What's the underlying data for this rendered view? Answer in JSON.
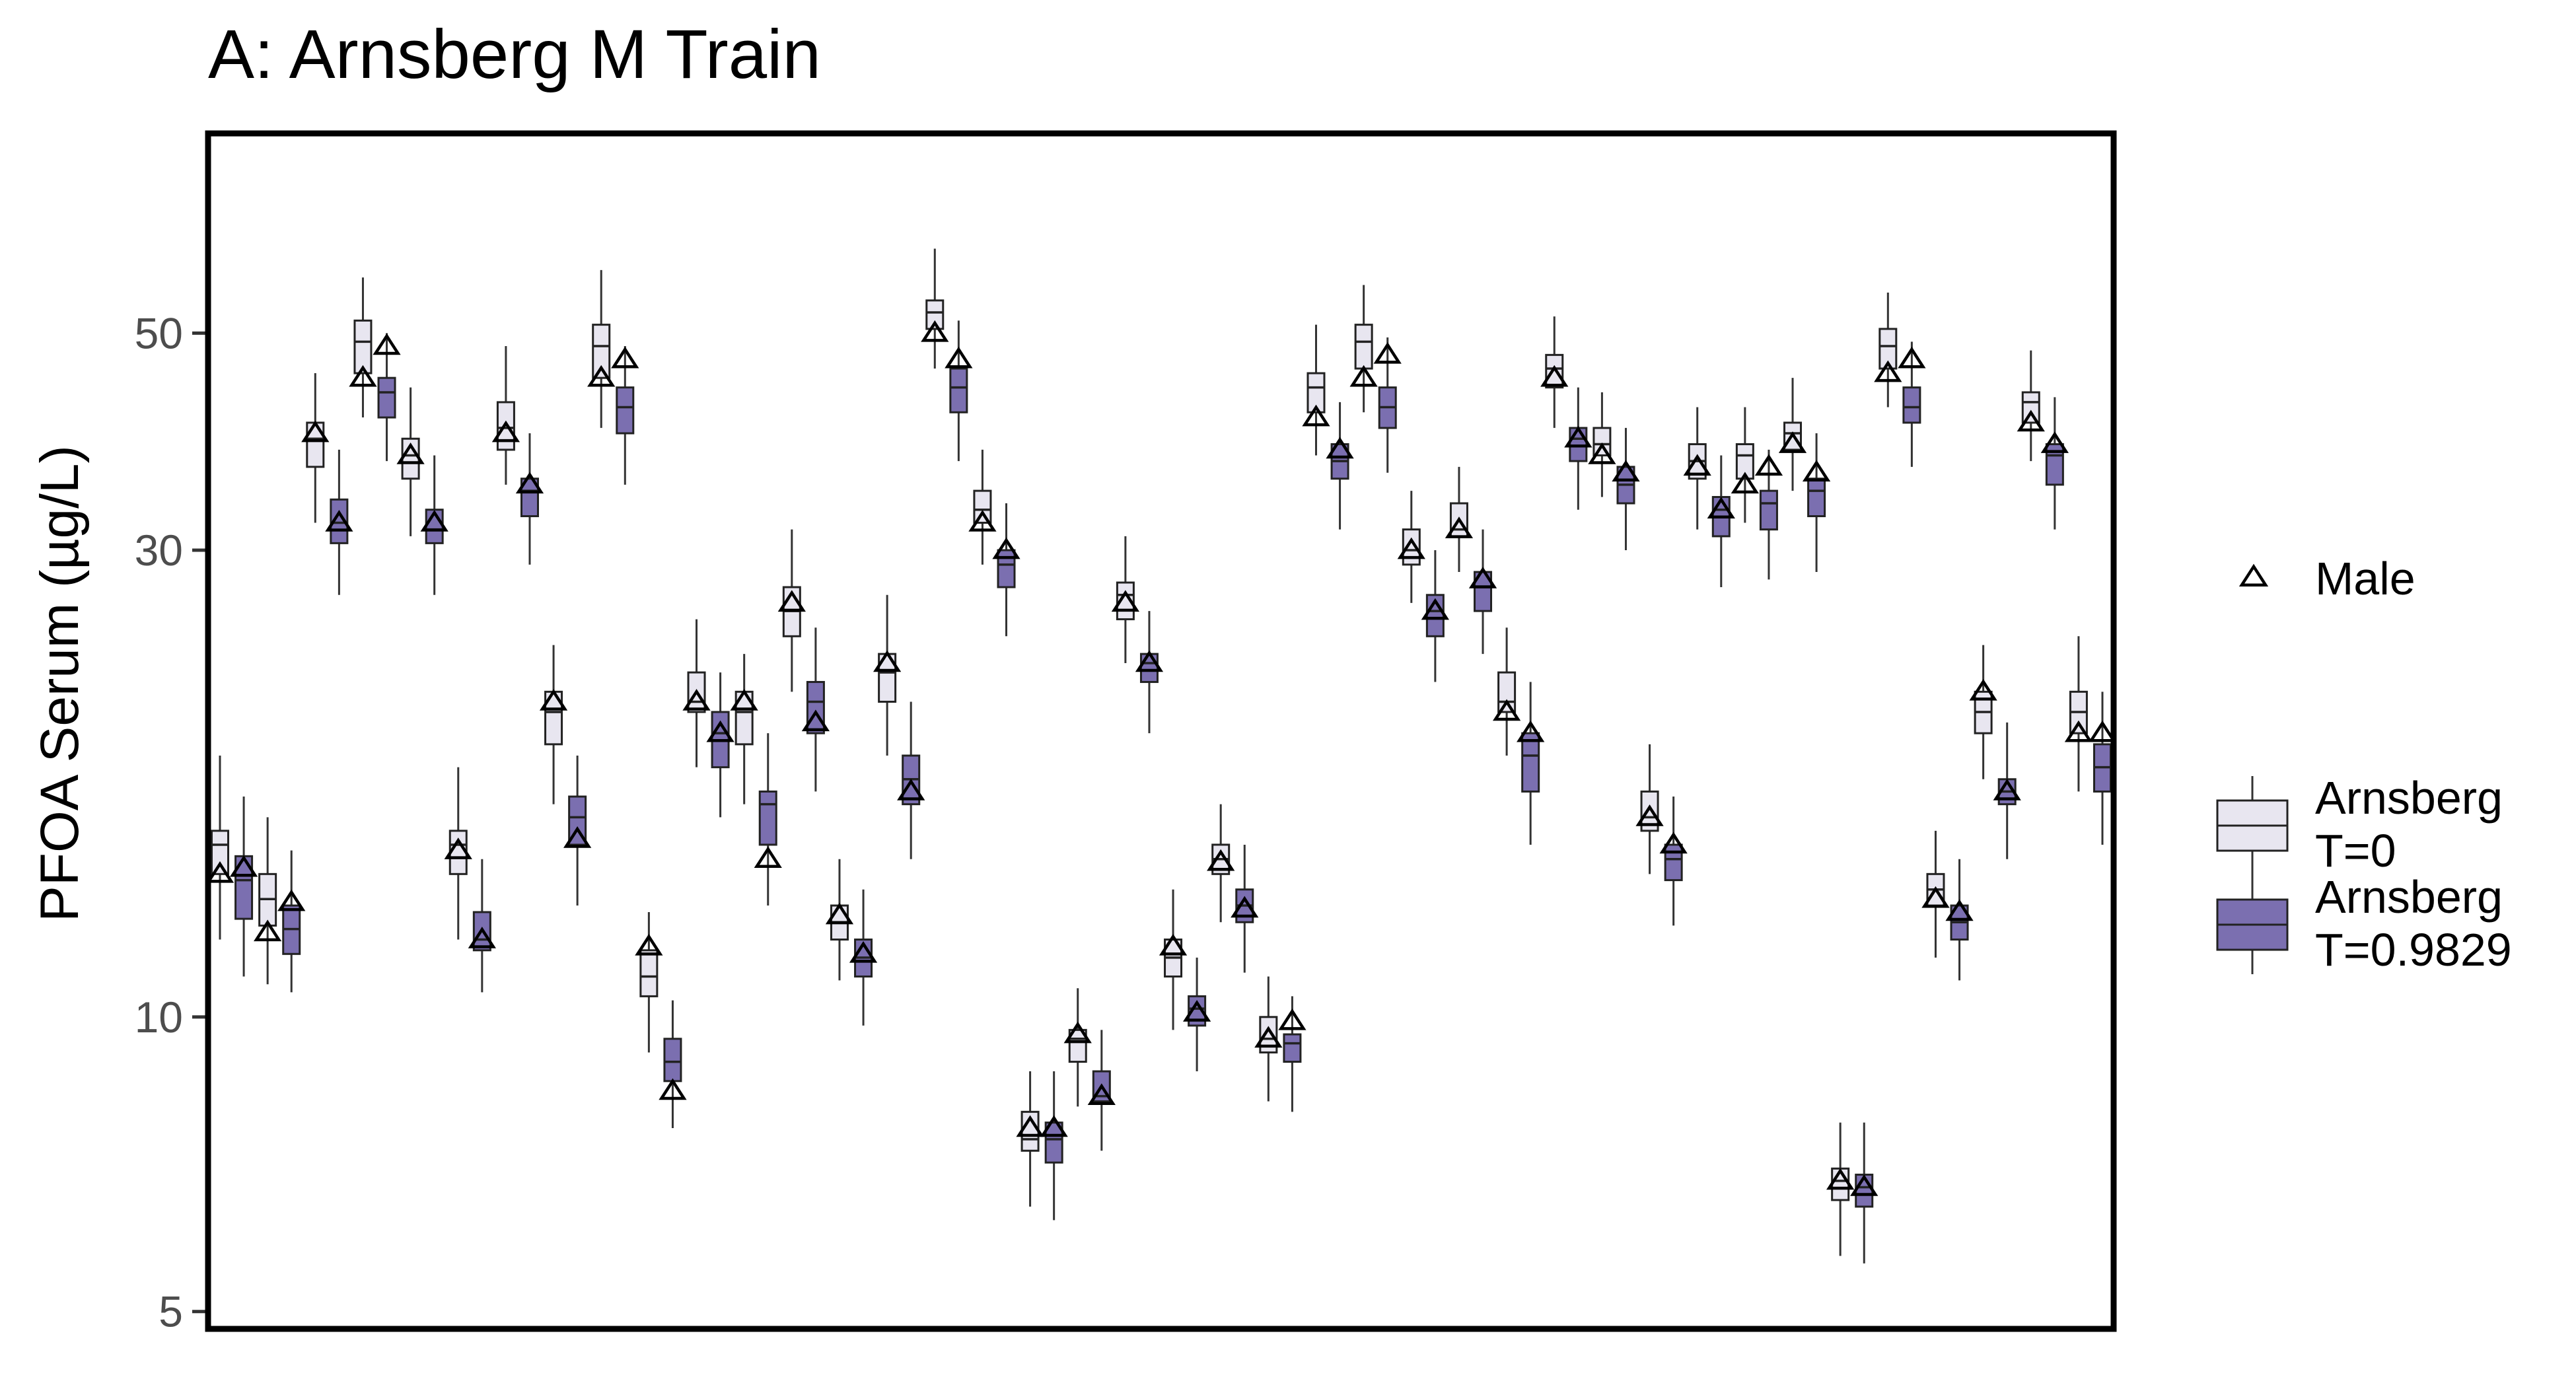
{
  "chart_data": {
    "type": "box",
    "title": "A: Arnsberg M Train",
    "xlabel": "",
    "ylabel": "PFOA Serum (µg/L)",
    "y_scale": "log",
    "ylim": [
      4.8,
      80
    ],
    "yticks": [
      5,
      10,
      30,
      50
    ],
    "ytick_labels": [
      "5",
      "10",
      "30",
      "50"
    ],
    "grid": false,
    "legend_position": "right",
    "legend": {
      "shape_entries": [
        {
          "label": "Male",
          "marker": "triangle-open"
        }
      ],
      "fill_entries": [
        {
          "label": "Arnsberg\nT=0",
          "line1": "Arnsberg",
          "line2": "T=0",
          "color": "#e8e6f0"
        },
        {
          "label": "Arnsberg\nT=0.9829",
          "line1": "Arnsberg",
          "line2": "T=0.9829",
          "color": "#7b6fb0"
        }
      ]
    },
    "colors": {
      "t0_fill": "#e8e6f0",
      "t1_fill": "#7b6fb0",
      "outline": "#222222",
      "whisker": "#333333"
    },
    "series_names": [
      "Arnsberg T=0",
      "Arnsberg T=0.9829"
    ],
    "subjects": [
      {
        "t0": {
          "med": 15.0,
          "q1": 14.0,
          "q3": 15.5,
          "lo": 12.0,
          "hi": 18.5,
          "obs": 14.0
        },
        "t1": {
          "med": 13.8,
          "q1": 12.6,
          "q3": 14.6,
          "lo": 11.0,
          "hi": 16.8,
          "obs": 14.2
        }
      },
      {
        "t0": {
          "med": 13.2,
          "q1": 12.4,
          "q3": 14.0,
          "lo": 10.8,
          "hi": 16.0,
          "obs": 12.2
        },
        "t1": {
          "med": 12.3,
          "q1": 11.6,
          "q3": 13.0,
          "lo": 10.6,
          "hi": 14.8,
          "obs": 13.1
        }
      },
      {
        "t0": {
          "med": 39.0,
          "q1": 36.5,
          "q3": 40.5,
          "lo": 32.0,
          "hi": 45.5,
          "obs": 39.5
        },
        "t1": {
          "med": 32.0,
          "q1": 30.5,
          "q3": 33.8,
          "lo": 27.0,
          "hi": 38.0,
          "obs": 32.0
        }
      },
      {
        "t0": {
          "med": 49.0,
          "q1": 45.5,
          "q3": 51.5,
          "lo": 41.0,
          "hi": 57.0,
          "obs": 45.0
        },
        "t1": {
          "med": 43.5,
          "q1": 41.0,
          "q3": 45.0,
          "lo": 37.0,
          "hi": 50.0,
          "obs": 48.5
        }
      },
      {
        "t0": {
          "med": 37.5,
          "q1": 35.5,
          "q3": 39.0,
          "lo": 31.0,
          "hi": 44.0,
          "obs": 37.5
        },
        "t1": {
          "med": 31.5,
          "q1": 30.5,
          "q3": 33.0,
          "lo": 27.0,
          "hi": 37.5,
          "obs": 32.0
        }
      },
      {
        "t0": {
          "med": 15.0,
          "q1": 14.0,
          "q3": 15.5,
          "lo": 12.0,
          "hi": 18.0,
          "obs": 14.8
        },
        "t1": {
          "med": 12.0,
          "q1": 11.7,
          "q3": 12.8,
          "lo": 10.6,
          "hi": 14.5,
          "obs": 12.0
        }
      },
      {
        "t0": {
          "med": 40.0,
          "q1": 38.0,
          "q3": 42.5,
          "lo": 35.0,
          "hi": 48.5,
          "obs": 39.5
        },
        "t1": {
          "med": 34.5,
          "q1": 32.5,
          "q3": 35.5,
          "lo": 29.0,
          "hi": 39.5,
          "obs": 35.0
        }
      },
      {
        "t0": {
          "med": 20.5,
          "q1": 19.0,
          "q3": 21.5,
          "lo": 16.5,
          "hi": 24.0,
          "obs": 21.0
        },
        "t1": {
          "med": 16.0,
          "q1": 15.0,
          "q3": 16.8,
          "lo": 13.0,
          "hi": 18.5,
          "obs": 15.2
        }
      },
      {
        "t0": {
          "med": 48.5,
          "q1": 45.0,
          "q3": 51.0,
          "lo": 40.0,
          "hi": 58.0,
          "obs": 45.0
        },
        "t1": {
          "med": 42.0,
          "q1": 39.5,
          "q3": 44.0,
          "lo": 35.0,
          "hi": 48.5,
          "obs": 47.0
        }
      },
      {
        "t0": {
          "med": 11.0,
          "q1": 10.5,
          "q3": 11.7,
          "lo": 9.2,
          "hi": 12.8,
          "obs": 11.8
        },
        "t1": {
          "med": 9.0,
          "q1": 8.6,
          "q3": 9.5,
          "lo": 7.7,
          "hi": 10.4,
          "obs": 8.4
        }
      },
      {
        "t0": {
          "med": 21.0,
          "q1": 20.5,
          "q3": 22.5,
          "lo": 18.0,
          "hi": 25.5,
          "obs": 21.0
        },
        "t1": {
          "med": 19.5,
          "q1": 18.0,
          "q3": 20.5,
          "lo": 16.0,
          "hi": 22.5,
          "obs": 19.5
        }
      },
      {
        "t0": {
          "med": 20.5,
          "q1": 19.0,
          "q3": 21.5,
          "lo": 16.5,
          "hi": 23.5,
          "obs": 21.0
        },
        "t1": {
          "med": 16.5,
          "q1": 15.0,
          "q3": 17.0,
          "lo": 13.0,
          "hi": 19.5,
          "obs": 14.5
        }
      },
      {
        "t0": {
          "med": 26.0,
          "q1": 24.5,
          "q3": 27.5,
          "lo": 21.5,
          "hi": 31.5,
          "obs": 26.5
        },
        "t1": {
          "med": 21.0,
          "q1": 19.5,
          "q3": 22.0,
          "lo": 17.0,
          "hi": 25.0,
          "obs": 20.0
        }
      },
      {
        "t0": {
          "med": 12.5,
          "q1": 12.0,
          "q3": 13.0,
          "lo": 10.9,
          "hi": 14.5,
          "obs": 12.7
        },
        "t1": {
          "med": 11.5,
          "q1": 11.0,
          "q3": 12.0,
          "lo": 9.8,
          "hi": 13.5,
          "obs": 11.6
        }
      },
      {
        "t0": {
          "med": 22.5,
          "q1": 21.0,
          "q3": 23.5,
          "lo": 18.5,
          "hi": 27.0,
          "obs": 23.0
        },
        "t1": {
          "med": 17.5,
          "q1": 16.5,
          "q3": 18.5,
          "lo": 14.5,
          "hi": 21.0,
          "obs": 17.0
        }
      },
      {
        "t0": {
          "med": 52.5,
          "q1": 50.5,
          "q3": 54.0,
          "lo": 46.0,
          "hi": 61.0,
          "obs": 50.0
        },
        "t1": {
          "med": 44.0,
          "q1": 41.5,
          "q3": 46.0,
          "lo": 37.0,
          "hi": 51.5,
          "obs": 47.0
        }
      },
      {
        "t0": {
          "med": 33.0,
          "q1": 32.0,
          "q3": 34.5,
          "lo": 29.0,
          "hi": 38.0,
          "obs": 32.0
        },
        "t1": {
          "med": 29.0,
          "q1": 27.5,
          "q3": 30.0,
          "lo": 24.5,
          "hi": 33.5,
          "obs": 30.0
        }
      },
      {
        "t0": {
          "med": 7.5,
          "q1": 7.3,
          "q3": 8.0,
          "lo": 6.4,
          "hi": 8.8,
          "obs": 7.7
        },
        "t1": {
          "med": 7.5,
          "q1": 7.1,
          "q3": 7.8,
          "lo": 6.2,
          "hi": 8.8,
          "obs": 7.7
        }
      },
      {
        "t0": {
          "med": 9.5,
          "q1": 9.0,
          "q3": 9.7,
          "lo": 8.1,
          "hi": 10.7,
          "obs": 9.6
        },
        "t1": {
          "med": 8.3,
          "q1": 8.2,
          "q3": 8.8,
          "lo": 7.3,
          "hi": 9.7,
          "obs": 8.3
        }
      },
      {
        "t0": {
          "med": 27.0,
          "q1": 25.5,
          "q3": 27.8,
          "lo": 23.0,
          "hi": 31.0,
          "obs": 26.5
        },
        "t1": {
          "med": 23.0,
          "q1": 22.0,
          "q3": 23.5,
          "lo": 19.5,
          "hi": 26.0,
          "obs": 23.0
        }
      },
      {
        "t0": {
          "med": 11.5,
          "q1": 11.0,
          "q3": 12.0,
          "lo": 9.7,
          "hi": 13.5,
          "obs": 11.8
        },
        "t1": {
          "med": 10.2,
          "q1": 9.8,
          "q3": 10.5,
          "lo": 8.8,
          "hi": 11.5,
          "obs": 10.1
        }
      },
      {
        "t0": {
          "med": 14.5,
          "q1": 14.0,
          "q3": 15.0,
          "lo": 12.5,
          "hi": 16.5,
          "obs": 14.4
        },
        "t1": {
          "med": 13.0,
          "q1": 12.5,
          "q3": 13.5,
          "lo": 11.1,
          "hi": 15.0,
          "obs": 12.9
        }
      },
      {
        "t0": {
          "med": 9.5,
          "q1": 9.2,
          "q3": 10.0,
          "lo": 8.2,
          "hi": 11.0,
          "obs": 9.5
        },
        "t1": {
          "med": 9.4,
          "q1": 9.0,
          "q3": 9.6,
          "lo": 8.0,
          "hi": 10.5,
          "obs": 9.9
        }
      },
      {
        "t0": {
          "med": 44.0,
          "q1": 41.5,
          "q3": 45.5,
          "lo": 37.5,
          "hi": 51.0,
          "obs": 41.0
        },
        "t1": {
          "med": 37.0,
          "q1": 35.5,
          "q3": 38.5,
          "lo": 31.5,
          "hi": 42.5,
          "obs": 38.0
        }
      },
      {
        "t0": {
          "med": 49.0,
          "q1": 46.0,
          "q3": 51.0,
          "lo": 41.5,
          "hi": 56.0,
          "obs": 45.0
        },
        "t1": {
          "med": 42.0,
          "q1": 40.0,
          "q3": 44.0,
          "lo": 36.0,
          "hi": 49.5,
          "obs": 47.5
        }
      },
      {
        "t0": {
          "med": 30.0,
          "q1": 29.0,
          "q3": 31.5,
          "lo": 26.5,
          "hi": 34.5,
          "obs": 30.0
        },
        "t1": {
          "med": 26.0,
          "q1": 24.5,
          "q3": 27.0,
          "lo": 22.0,
          "hi": 30.0,
          "obs": 26.0
        }
      },
      {
        "t0": {
          "med": 31.5,
          "q1": 31.0,
          "q3": 33.5,
          "lo": 28.5,
          "hi": 36.5,
          "obs": 31.5
        },
        "t1": {
          "med": 27.5,
          "q1": 26.0,
          "q3": 28.5,
          "lo": 23.5,
          "hi": 31.5,
          "obs": 28.0
        }
      },
      {
        "t0": {
          "med": 21.0,
          "q1": 20.5,
          "q3": 22.5,
          "lo": 18.5,
          "hi": 25.0,
          "obs": 20.5
        },
        "t1": {
          "med": 18.5,
          "q1": 17.0,
          "q3": 19.5,
          "lo": 15.0,
          "hi": 22.0,
          "obs": 19.5
        }
      },
      {
        "t0": {
          "med": 46.0,
          "q1": 44.0,
          "q3": 47.5,
          "lo": 40.0,
          "hi": 52.0,
          "obs": 45.0
        },
        "t1": {
          "med": 39.0,
          "q1": 37.0,
          "q3": 40.0,
          "lo": 33.0,
          "hi": 44.0,
          "obs": 39.0
        }
      },
      {
        "t0": {
          "med": 38.5,
          "q1": 37.5,
          "q3": 40.0,
          "lo": 34.0,
          "hi": 43.5,
          "obs": 37.5
        },
        "t1": {
          "med": 35.0,
          "q1": 33.5,
          "q3": 36.5,
          "lo": 30.0,
          "hi": 40.0,
          "obs": 36.0
        }
      },
      {
        "t0": {
          "med": 16.0,
          "q1": 15.5,
          "q3": 17.0,
          "lo": 14.0,
          "hi": 19.0,
          "obs": 16.0
        },
        "t1": {
          "med": 14.5,
          "q1": 13.8,
          "q3": 15.0,
          "lo": 12.4,
          "hi": 16.8,
          "obs": 15.0
        }
      },
      {
        "t0": {
          "med": 37.0,
          "q1": 35.5,
          "q3": 38.5,
          "lo": 31.5,
          "hi": 42.0,
          "obs": 36.5
        },
        "t1": {
          "med": 33.0,
          "q1": 31.0,
          "q3": 34.0,
          "lo": 27.5,
          "hi": 37.5,
          "obs": 33.0
        }
      },
      {
        "t0": {
          "med": 37.5,
          "q1": 35.5,
          "q3": 38.5,
          "lo": 32.0,
          "hi": 42.0,
          "obs": 35.0
        },
        "t1": {
          "med": 33.5,
          "q1": 31.5,
          "q3": 34.5,
          "lo": 28.0,
          "hi": 38.0,
          "obs": 36.5
        }
      },
      {
        "t0": {
          "med": 39.5,
          "q1": 38.0,
          "q3": 40.5,
          "lo": 34.5,
          "hi": 45.0,
          "obs": 38.5
        },
        "t1": {
          "med": 34.5,
          "q1": 32.5,
          "q3": 35.5,
          "lo": 28.5,
          "hi": 39.5,
          "obs": 36.0
        }
      },
      {
        "t0": {
          "med": 6.8,
          "q1": 6.5,
          "q3": 7.0,
          "lo": 5.7,
          "hi": 7.8,
          "obs": 6.8
        },
        "t1": {
          "med": 6.7,
          "q1": 6.4,
          "q3": 6.9,
          "lo": 5.6,
          "hi": 7.8,
          "obs": 6.7
        }
      },
      {
        "t0": {
          "med": 48.5,
          "q1": 46.0,
          "q3": 50.5,
          "lo": 42.0,
          "hi": 55.0,
          "obs": 45.5
        },
        "t1": {
          "med": 42.0,
          "q1": 40.5,
          "q3": 44.0,
          "lo": 36.5,
          "hi": 49.0,
          "obs": 47.0
        }
      },
      {
        "t0": {
          "med": 13.5,
          "q1": 13.0,
          "q3": 14.0,
          "lo": 11.5,
          "hi": 15.5,
          "obs": 13.2
        },
        "t1": {
          "med": 12.5,
          "q1": 12.0,
          "q3": 13.0,
          "lo": 10.9,
          "hi": 14.5,
          "obs": 12.8
        }
      },
      {
        "t0": {
          "med": 20.5,
          "q1": 19.5,
          "q3": 21.5,
          "lo": 17.5,
          "hi": 24.0,
          "obs": 21.5
        },
        "t1": {
          "med": 17.0,
          "q1": 16.5,
          "q3": 17.5,
          "lo": 14.5,
          "hi": 20.0,
          "obs": 17.0
        }
      },
      {
        "t0": {
          "med": 42.5,
          "q1": 40.5,
          "q3": 43.5,
          "lo": 37.0,
          "hi": 48.0,
          "obs": 40.5
        },
        "t1": {
          "med": 37.5,
          "q1": 35.0,
          "q3": 38.5,
          "lo": 31.5,
          "hi": 43.0,
          "obs": 38.5
        }
      },
      {
        "t0": {
          "med": 20.5,
          "q1": 19.5,
          "q3": 21.5,
          "lo": 17.0,
          "hi": 24.5,
          "obs": 19.5
        },
        "t1": {
          "med": 18.0,
          "q1": 17.0,
          "q3": 19.0,
          "lo": 15.0,
          "hi": 21.5,
          "obs": 19.5
        }
      }
    ]
  }
}
